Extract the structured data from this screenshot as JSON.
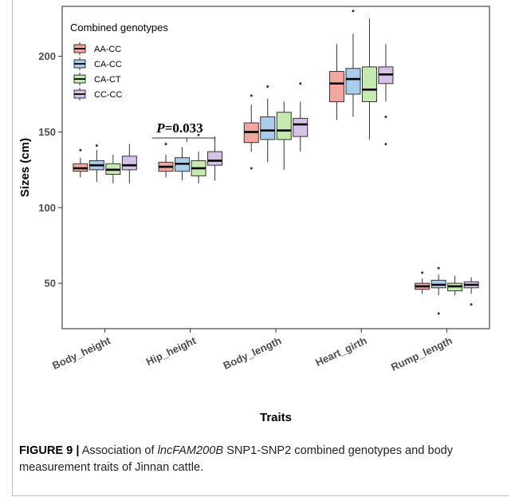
{
  "chart_data": {
    "type": "boxplot",
    "xlabel": "Traits",
    "ylabel": "Sizes (cm)",
    "ylim": [
      20,
      233
    ],
    "yticks": [
      50,
      100,
      150,
      200
    ],
    "grid": false,
    "legend": {
      "title": "Combined genotypes",
      "placement": "top-left"
    },
    "categories": [
      "Body_height",
      "Hip_height",
      "Body_length",
      "Heart_girth",
      "Rump_length"
    ],
    "series": [
      {
        "name": "AA-CC",
        "color": "#F4A6A0",
        "boxes": [
          {
            "low": 120,
            "q1": 124,
            "median": 126,
            "q3": 129,
            "high": 133,
            "outliers": [
              138
            ]
          },
          {
            "low": 120,
            "q1": 124,
            "median": 127,
            "q3": 130,
            "high": 135,
            "outliers": [
              142
            ]
          },
          {
            "low": 137,
            "q1": 143,
            "median": 150,
            "q3": 156,
            "high": 168,
            "outliers": [
              126,
              174
            ]
          },
          {
            "low": 158,
            "q1": 170,
            "median": 182,
            "q3": 190,
            "high": 208,
            "outliers": []
          },
          {
            "low": 43,
            "q1": 46,
            "median": 48,
            "q3": 50,
            "high": 53,
            "outliers": [
              57
            ]
          }
        ]
      },
      {
        "name": "CA-CC",
        "color": "#A9CDEB",
        "boxes": [
          {
            "low": 117,
            "q1": 125,
            "median": 128,
            "q3": 131,
            "high": 138,
            "outliers": [
              141
            ]
          },
          {
            "low": 118,
            "q1": 124,
            "median": 129,
            "q3": 133,
            "high": 140,
            "outliers": []
          },
          {
            "low": 130,
            "q1": 145,
            "median": 151,
            "q3": 160,
            "high": 172,
            "outliers": [
              180
            ]
          },
          {
            "low": 160,
            "q1": 175,
            "median": 185,
            "q3": 192,
            "high": 215,
            "outliers": [
              230
            ]
          },
          {
            "low": 42,
            "q1": 47,
            "median": 49,
            "q3": 52,
            "high": 56,
            "outliers": [
              30,
              60
            ]
          }
        ]
      },
      {
        "name": "CA-CT",
        "color": "#C4EAB0",
        "boxes": [
          {
            "low": 116,
            "q1": 122,
            "median": 125,
            "q3": 129,
            "high": 135,
            "outliers": []
          },
          {
            "low": 116,
            "q1": 121,
            "median": 126,
            "q3": 131,
            "high": 137,
            "outliers": [
              148
            ]
          },
          {
            "low": 125,
            "q1": 145,
            "median": 151,
            "q3": 163,
            "high": 170,
            "outliers": []
          },
          {
            "low": 145,
            "q1": 170,
            "median": 178,
            "q3": 193,
            "high": 225,
            "outliers": []
          },
          {
            "low": 42,
            "q1": 45,
            "median": 48,
            "q3": 50,
            "high": 55,
            "outliers": []
          }
        ]
      },
      {
        "name": "CC-CC",
        "color": "#D6C2E6",
        "boxes": [
          {
            "low": 116,
            "q1": 125,
            "median": 128,
            "q3": 134,
            "high": 142,
            "outliers": []
          },
          {
            "low": 118,
            "q1": 128,
            "median": 131,
            "q3": 137,
            "high": 147,
            "outliers": []
          },
          {
            "low": 137,
            "q1": 147,
            "median": 155,
            "q3": 159,
            "high": 170,
            "outliers": [
              182
            ]
          },
          {
            "low": 170,
            "q1": 182,
            "median": 188,
            "q3": 193,
            "high": 208,
            "outliers": [
              142,
              160
            ]
          },
          {
            "low": 43,
            "q1": 47,
            "median": 49,
            "q3": 51,
            "high": 54,
            "outliers": [
              36
            ]
          }
        ]
      }
    ],
    "annotations": [
      {
        "text_prefix": "P",
        "text_value": "=0.033",
        "category": "Hip_height",
        "from_series": 0,
        "to_series": 3,
        "y": 146
      }
    ]
  },
  "caption": {
    "label": "FIGURE 9 |",
    "text_before": " Association of ",
    "gene": "lncFAM200B",
    "text_after": " SNP1-SNP2 combined genotypes and body measurement traits of Jinnan cattle."
  }
}
